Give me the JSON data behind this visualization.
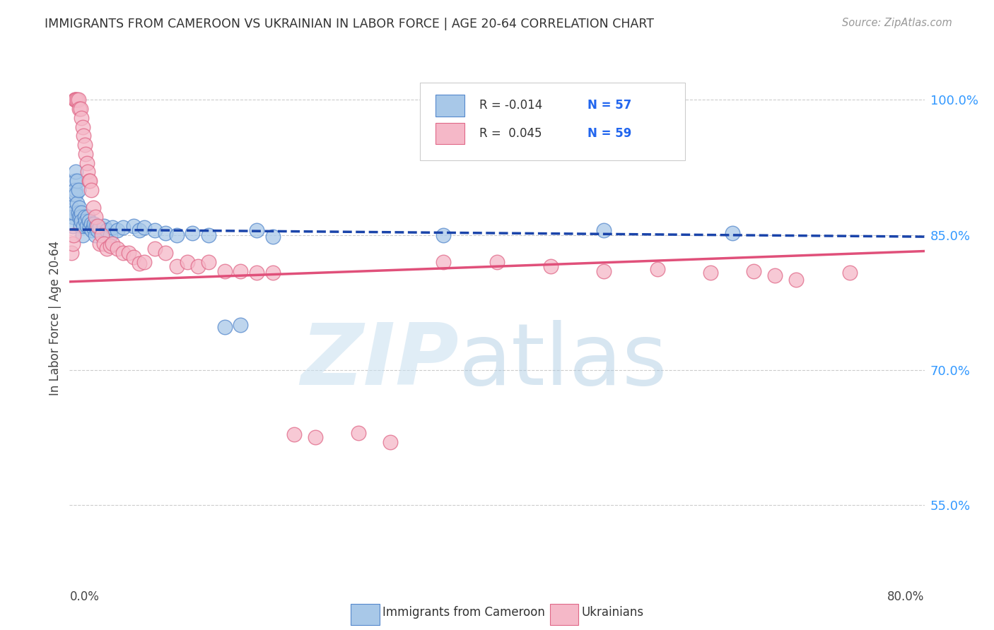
{
  "title": "IMMIGRANTS FROM CAMEROON VS UKRAINIAN IN LABOR FORCE | AGE 20-64 CORRELATION CHART",
  "source": "Source: ZipAtlas.com",
  "ylabel": "In Labor Force | Age 20-64",
  "xmin": 0.0,
  "xmax": 0.8,
  "ymin": 0.46,
  "ymax": 1.055,
  "yticks": [
    0.55,
    0.7,
    0.85,
    1.0
  ],
  "ytick_labels": [
    "55.0%",
    "70.0%",
    "85.0%",
    "100.0%"
  ],
  "legend_blue_r": "R = -0.014",
  "legend_blue_n": "N = 57",
  "legend_pink_r": "R =  0.045",
  "legend_pink_n": "N = 59",
  "legend_blue_label": "Immigrants from Cameroon",
  "legend_pink_label": "Ukrainians",
  "blue_color": "#a8c8e8",
  "blue_edge": "#5588cc",
  "pink_color": "#f5b8c8",
  "pink_edge": "#e06888",
  "blue_line_color": "#1a44aa",
  "pink_line_color": "#e0507a",
  "blue_trend_y0": 0.856,
  "blue_trend_y1": 0.848,
  "pink_trend_y0": 0.798,
  "pink_trend_y1": 0.832,
  "watermark_zip": "ZIP",
  "watermark_atlas": "atlas",
  "blue_x": [
    0.002,
    0.003,
    0.003,
    0.004,
    0.004,
    0.005,
    0.005,
    0.006,
    0.006,
    0.007,
    0.007,
    0.008,
    0.008,
    0.009,
    0.009,
    0.01,
    0.01,
    0.011,
    0.011,
    0.012,
    0.013,
    0.014,
    0.015,
    0.016,
    0.017,
    0.018,
    0.019,
    0.02,
    0.021,
    0.022,
    0.023,
    0.024,
    0.025,
    0.026,
    0.028,
    0.03,
    0.032,
    0.035,
    0.038,
    0.04,
    0.045,
    0.05,
    0.06,
    0.065,
    0.07,
    0.08,
    0.09,
    0.1,
    0.115,
    0.13,
    0.145,
    0.16,
    0.175,
    0.19,
    0.35,
    0.5,
    0.62
  ],
  "blue_y": [
    0.88,
    0.87,
    0.86,
    0.875,
    0.895,
    0.91,
    0.9,
    0.92,
    0.895,
    0.91,
    0.885,
    0.9,
    0.875,
    0.87,
    0.88,
    0.86,
    0.87,
    0.875,
    0.865,
    0.85,
    0.86,
    0.87,
    0.865,
    0.86,
    0.87,
    0.865,
    0.858,
    0.862,
    0.855,
    0.858,
    0.862,
    0.85,
    0.86,
    0.855,
    0.858,
    0.852,
    0.86,
    0.855,
    0.85,
    0.858,
    0.855,
    0.858,
    0.86,
    0.855,
    0.858,
    0.855,
    0.852,
    0.85,
    0.852,
    0.85,
    0.748,
    0.75,
    0.855,
    0.848,
    0.85,
    0.855,
    0.852
  ],
  "pink_x": [
    0.002,
    0.003,
    0.004,
    0.005,
    0.005,
    0.006,
    0.007,
    0.008,
    0.009,
    0.01,
    0.011,
    0.012,
    0.013,
    0.014,
    0.015,
    0.016,
    0.017,
    0.018,
    0.019,
    0.02,
    0.022,
    0.024,
    0.026,
    0.028,
    0.03,
    0.032,
    0.035,
    0.038,
    0.04,
    0.045,
    0.05,
    0.055,
    0.06,
    0.065,
    0.07,
    0.08,
    0.09,
    0.1,
    0.11,
    0.12,
    0.13,
    0.145,
    0.16,
    0.175,
    0.19,
    0.21,
    0.23,
    0.27,
    0.3,
    0.35,
    0.4,
    0.45,
    0.5,
    0.55,
    0.6,
    0.64,
    0.66,
    0.68,
    0.73
  ],
  "pink_y": [
    0.83,
    0.84,
    0.85,
    1.0,
    1.0,
    1.0,
    1.0,
    1.0,
    0.99,
    0.99,
    0.98,
    0.97,
    0.96,
    0.95,
    0.94,
    0.93,
    0.92,
    0.91,
    0.91,
    0.9,
    0.88,
    0.87,
    0.86,
    0.84,
    0.85,
    0.84,
    0.835,
    0.838,
    0.84,
    0.835,
    0.83,
    0.83,
    0.825,
    0.818,
    0.82,
    0.835,
    0.83,
    0.815,
    0.82,
    0.815,
    0.82,
    0.81,
    0.81,
    0.808,
    0.808,
    0.628,
    0.625,
    0.63,
    0.62,
    0.82,
    0.82,
    0.815,
    0.81,
    0.812,
    0.808,
    0.81,
    0.805,
    0.8,
    0.808
  ]
}
